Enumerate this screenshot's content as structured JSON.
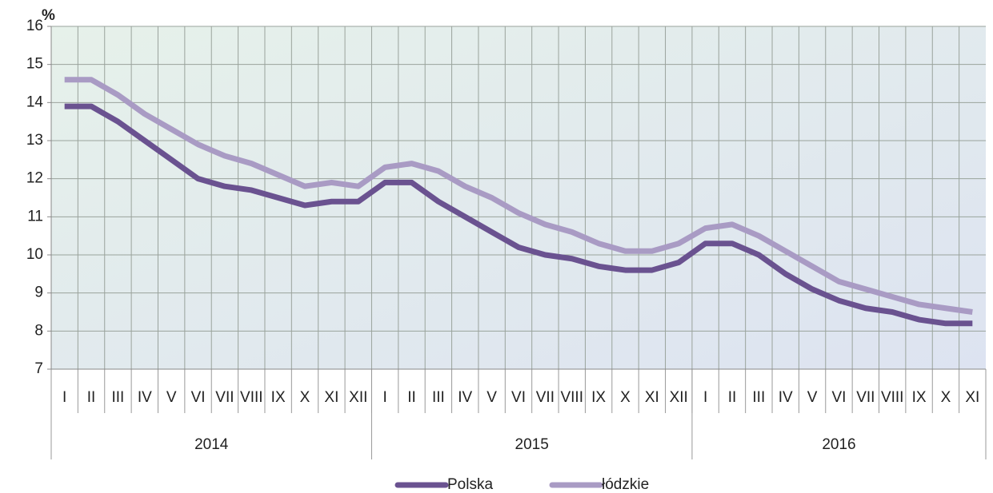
{
  "chart_data": {
    "type": "line",
    "y_label": "%",
    "categories": [
      "I",
      "II",
      "III",
      "IV",
      "V",
      "VI",
      "VII",
      "VIII",
      "IX",
      "X",
      "XI",
      "XII",
      "I",
      "II",
      "III",
      "IV",
      "V",
      "VI",
      "VII",
      "VIII",
      "IX",
      "X",
      "XI",
      "XII",
      "I",
      "II",
      "III",
      "IV",
      "V",
      "VI",
      "VII",
      "VIII",
      "IX",
      "X",
      "XI"
    ],
    "years": [
      "2014",
      "2015",
      "2016"
    ],
    "series": [
      {
        "name": "Polska",
        "color": "#6a5290",
        "values": [
          13.9,
          13.9,
          13.5,
          13.0,
          12.5,
          12.0,
          11.8,
          11.7,
          11.5,
          11.3,
          11.4,
          11.4,
          11.9,
          11.9,
          11.4,
          11.0,
          10.6,
          10.2,
          10.0,
          9.9,
          9.7,
          9.6,
          9.6,
          9.8,
          10.3,
          10.3,
          10.0,
          9.5,
          9.1,
          8.8,
          8.6,
          8.5,
          8.3,
          8.2,
          8.2
        ]
      },
      {
        "name": "łódzkie",
        "color": "#a99bc4",
        "values": [
          14.6,
          14.6,
          14.2,
          13.7,
          13.3,
          12.9,
          12.6,
          12.4,
          12.1,
          11.8,
          11.9,
          11.8,
          12.3,
          12.4,
          12.2,
          11.8,
          11.5,
          11.1,
          10.8,
          10.6,
          10.3,
          10.1,
          10.1,
          10.3,
          10.7,
          10.8,
          10.5,
          10.1,
          9.7,
          9.3,
          9.1,
          8.9,
          8.7,
          8.6,
          8.5
        ]
      }
    ],
    "ylim": [
      7,
      16
    ],
    "yticks": [
      7,
      8,
      9,
      10,
      11,
      12,
      13,
      14,
      15,
      16
    ],
    "grid": true,
    "legend": "bottom"
  }
}
